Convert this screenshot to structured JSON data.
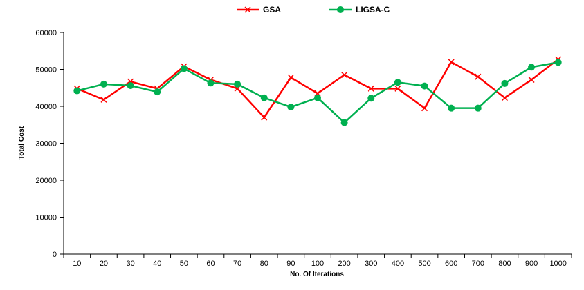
{
  "chart_data": {
    "type": "line",
    "title": "",
    "xlabel": "No. Of Iterations",
    "ylabel": "Total Cost",
    "categories": [
      "10",
      "20",
      "30",
      "40",
      "50",
      "60",
      "70",
      "80",
      "90",
      "100",
      "200",
      "300",
      "400",
      "500",
      "600",
      "700",
      "800",
      "900",
      "1000"
    ],
    "ylim": [
      0,
      60000
    ],
    "yticks": [
      0,
      10000,
      20000,
      30000,
      40000,
      50000,
      60000
    ],
    "grid": false,
    "legend_position": "top-center",
    "series": [
      {
        "name": "GSA",
        "color": "#ff0000",
        "marker": "x",
        "values": [
          44800,
          41800,
          46700,
          44800,
          50800,
          47200,
          44800,
          37000,
          47800,
          43500,
          48500,
          44800,
          44800,
          39500,
          52000,
          48000,
          42300,
          47200,
          52700
        ]
      },
      {
        "name": "LIGSA-C",
        "color": "#00b050",
        "marker": "circle",
        "values": [
          44200,
          46000,
          45600,
          43900,
          50200,
          46300,
          46000,
          42300,
          39800,
          42300,
          35600,
          42200,
          46500,
          45500,
          39500,
          39500,
          46200,
          50600,
          51900
        ]
      }
    ]
  }
}
